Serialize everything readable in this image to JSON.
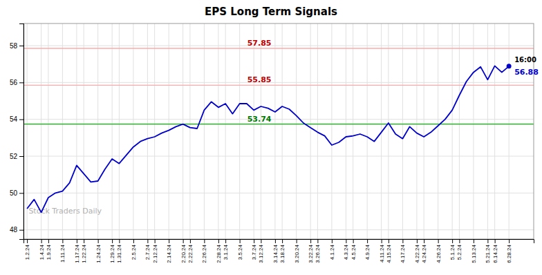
{
  "chart_data": {
    "type": "line",
    "title": "EPS Long Term Signals",
    "categories": [
      "1.2.24",
      null,
      "1.4.24",
      "1.9.24",
      null,
      "1.11.24",
      null,
      "1.17.24",
      "1.22.24",
      null,
      "1.24.24",
      null,
      "1.29.24",
      "1.31.24",
      null,
      "2.5.24",
      null,
      "2.7.24",
      "2.12.24",
      null,
      "2.14.24",
      null,
      "2.20.24",
      "2.22.24",
      null,
      "2.26.24",
      null,
      "2.28.24",
      "3.1.24",
      null,
      "3.5.24",
      null,
      "3.7.24",
      "3.12.24",
      null,
      "3.14.24",
      "3.18.24",
      null,
      "3.20.24",
      null,
      "3.22.24",
      "3.26.24",
      null,
      "4.1.24",
      null,
      "4.3.24",
      "4.5.24",
      null,
      "4.9.24",
      null,
      "4.11.24",
      "4.15.24",
      null,
      "4.17.24",
      null,
      "4.22.24",
      "4.24.24",
      null,
      "4.26.24",
      null,
      "5.1.24",
      "5.2.24",
      null,
      "5.13.24",
      null,
      "5.21.24",
      "6.14.24",
      null,
      "6.28.24"
    ],
    "series": [
      {
        "color": "#0000cc",
        "values": [
          49.15,
          49.65,
          48.95,
          49.75,
          50.0,
          50.1,
          50.55,
          51.5,
          51.05,
          50.6,
          50.65,
          51.3,
          51.85,
          51.6,
          52.05,
          52.5,
          52.8,
          52.95,
          53.05,
          53.25,
          53.4,
          53.6,
          53.74,
          53.55,
          53.5,
          54.5,
          54.95,
          54.65,
          54.85,
          54.3,
          54.85,
          54.85,
          54.5,
          54.7,
          54.6,
          54.4,
          54.7,
          54.55,
          54.2,
          53.8,
          53.55,
          53.3,
          53.1,
          52.6,
          52.75,
          53.05,
          53.1,
          53.2,
          53.05,
          52.8,
          53.3,
          53.8,
          53.2,
          52.95,
          53.6,
          53.25,
          53.05,
          53.3,
          53.65,
          54.0,
          54.5,
          55.3,
          56.05,
          56.55,
          56.85,
          56.15,
          56.9,
          56.55,
          56.88
        ]
      }
    ],
    "hlines": [
      {
        "value": 53.74,
        "label": "53.74",
        "color": "#00bb00",
        "label_color": "#007700"
      },
      {
        "value": 57.85,
        "label": "57.85",
        "color": "#ffaaaa",
        "label_color": "#bb0000"
      },
      {
        "value": 55.85,
        "label": "55.85",
        "color": "#ffaaaa",
        "label_color": "#bb0000"
      }
    ],
    "last_point": {
      "time_label": "16:00",
      "value_label": "56.88",
      "color": "#0000cc"
    },
    "watermark": {
      "text": "Stock Traders Daily",
      "color": "#b0b0b0"
    },
    "ylim": [
      47.5,
      59.2
    ],
    "yticks": [
      48,
      50,
      52,
      54,
      56,
      58
    ],
    "grid": true
  }
}
